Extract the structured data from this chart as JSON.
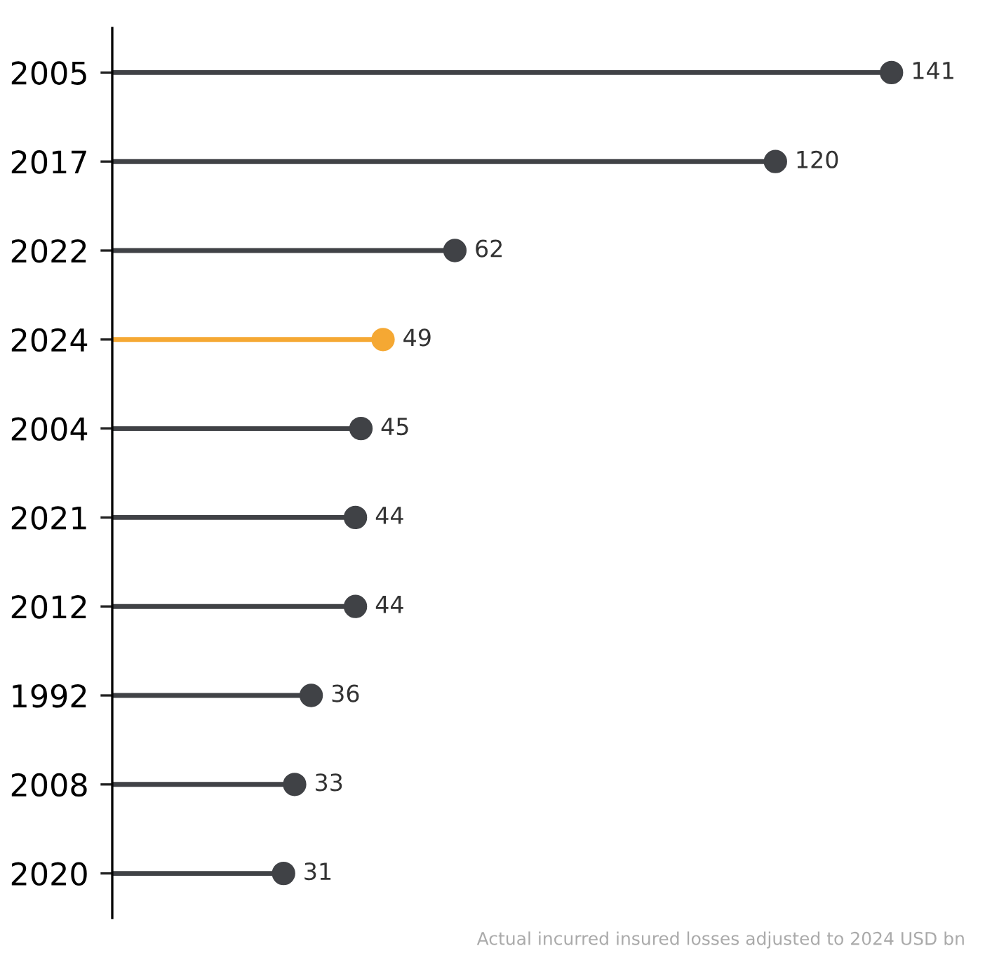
{
  "chart_data": {
    "type": "lollipop",
    "orientation": "horizontal",
    "data_labels": true,
    "marker": "circle",
    "categories": [
      "2005",
      "2017",
      "2022",
      "2024",
      "2004",
      "2021",
      "2012",
      "1992",
      "2008",
      "2020"
    ],
    "values": [
      141,
      120,
      62,
      49,
      45,
      44,
      44,
      36,
      33,
      31
    ],
    "colors": [
      "#404246",
      "#404246",
      "#404246",
      "#f5a833",
      "#404246",
      "#404246",
      "#404246",
      "#404246",
      "#404246",
      "#404246"
    ],
    "annotations": [
      "Actual incurred insured losses adjusted to 2024 USD bn"
    ],
    "line_style": "solid"
  }
}
